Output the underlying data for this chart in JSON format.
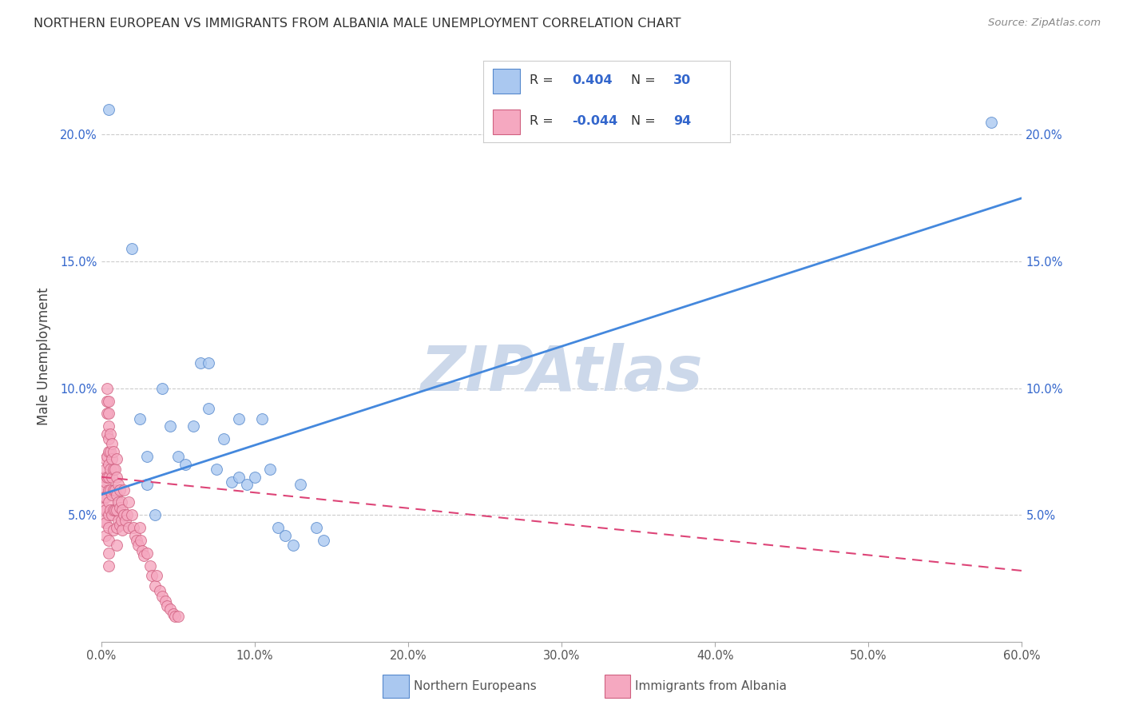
{
  "title": "NORTHERN EUROPEAN VS IMMIGRANTS FROM ALBANIA MALE UNEMPLOYMENT CORRELATION CHART",
  "source": "Source: ZipAtlas.com",
  "ylabel": "Male Unemployment",
  "xlim": [
    0.0,
    0.6
  ],
  "ylim": [
    0.0,
    0.225
  ],
  "xticks": [
    0.0,
    0.1,
    0.2,
    0.3,
    0.4,
    0.5,
    0.6
  ],
  "xticklabels": [
    "0.0%",
    "10.0%",
    "20.0%",
    "30.0%",
    "40.0%",
    "50.0%",
    "60.0%"
  ],
  "yticks": [
    0.05,
    0.1,
    0.15,
    0.2
  ],
  "yticklabels": [
    "5.0%",
    "10.0%",
    "15.0%",
    "20.0%"
  ],
  "blue_color": "#aac8f0",
  "blue_edge": "#5588cc",
  "pink_color": "#f5a8c0",
  "pink_edge": "#d06080",
  "blue_line_color": "#4488dd",
  "pink_line_color": "#dd4477",
  "watermark_color": "#ccd8ea",
  "blue_line_x0": 0.0,
  "blue_line_y0": 0.058,
  "blue_line_x1": 0.6,
  "blue_line_y1": 0.175,
  "pink_line_x0": 0.0,
  "pink_line_y0": 0.065,
  "pink_line_x1": 0.6,
  "pink_line_y1": 0.028,
  "blue_x": [
    0.005,
    0.02,
    0.025,
    0.03,
    0.03,
    0.035,
    0.04,
    0.045,
    0.05,
    0.055,
    0.06,
    0.065,
    0.07,
    0.07,
    0.075,
    0.08,
    0.085,
    0.09,
    0.09,
    0.095,
    0.1,
    0.105,
    0.11,
    0.115,
    0.12,
    0.125,
    0.13,
    0.14,
    0.145,
    0.58
  ],
  "blue_y": [
    0.21,
    0.155,
    0.088,
    0.073,
    0.062,
    0.05,
    0.1,
    0.085,
    0.073,
    0.07,
    0.085,
    0.11,
    0.11,
    0.092,
    0.068,
    0.08,
    0.063,
    0.088,
    0.065,
    0.062,
    0.065,
    0.088,
    0.068,
    0.045,
    0.042,
    0.038,
    0.062,
    0.045,
    0.04,
    0.205
  ],
  "pink_x": [
    0.002,
    0.002,
    0.002,
    0.002,
    0.002,
    0.003,
    0.003,
    0.003,
    0.003,
    0.003,
    0.003,
    0.003,
    0.004,
    0.004,
    0.004,
    0.004,
    0.004,
    0.004,
    0.005,
    0.005,
    0.005,
    0.005,
    0.005,
    0.005,
    0.005,
    0.005,
    0.005,
    0.005,
    0.005,
    0.005,
    0.005,
    0.005,
    0.006,
    0.006,
    0.006,
    0.006,
    0.006,
    0.007,
    0.007,
    0.007,
    0.007,
    0.007,
    0.008,
    0.008,
    0.008,
    0.008,
    0.008,
    0.009,
    0.009,
    0.009,
    0.01,
    0.01,
    0.01,
    0.01,
    0.01,
    0.01,
    0.011,
    0.011,
    0.011,
    0.012,
    0.012,
    0.012,
    0.013,
    0.013,
    0.014,
    0.014,
    0.015,
    0.015,
    0.016,
    0.017,
    0.018,
    0.018,
    0.02,
    0.021,
    0.022,
    0.023,
    0.024,
    0.025,
    0.026,
    0.027,
    0.028,
    0.03,
    0.032,
    0.033,
    0.035,
    0.036,
    0.038,
    0.04,
    0.042,
    0.043,
    0.045,
    0.047,
    0.048,
    0.05
  ],
  "pink_y": [
    0.065,
    0.06,
    0.057,
    0.053,
    0.048,
    0.072,
    0.068,
    0.063,
    0.057,
    0.052,
    0.047,
    0.042,
    0.1,
    0.095,
    0.09,
    0.082,
    0.073,
    0.065,
    0.095,
    0.09,
    0.085,
    0.08,
    0.075,
    0.07,
    0.065,
    0.06,
    0.055,
    0.05,
    0.045,
    0.04,
    0.035,
    0.03,
    0.082,
    0.075,
    0.068,
    0.06,
    0.052,
    0.078,
    0.072,
    0.065,
    0.058,
    0.05,
    0.075,
    0.068,
    0.06,
    0.052,
    0.044,
    0.068,
    0.06,
    0.052,
    0.072,
    0.065,
    0.058,
    0.052,
    0.045,
    0.038,
    0.062,
    0.055,
    0.048,
    0.06,
    0.053,
    0.046,
    0.055,
    0.048,
    0.052,
    0.044,
    0.06,
    0.05,
    0.048,
    0.05,
    0.055,
    0.045,
    0.05,
    0.045,
    0.042,
    0.04,
    0.038,
    0.045,
    0.04,
    0.036,
    0.034,
    0.035,
    0.03,
    0.026,
    0.022,
    0.026,
    0.02,
    0.018,
    0.016,
    0.014,
    0.013,
    0.011,
    0.01,
    0.01
  ]
}
